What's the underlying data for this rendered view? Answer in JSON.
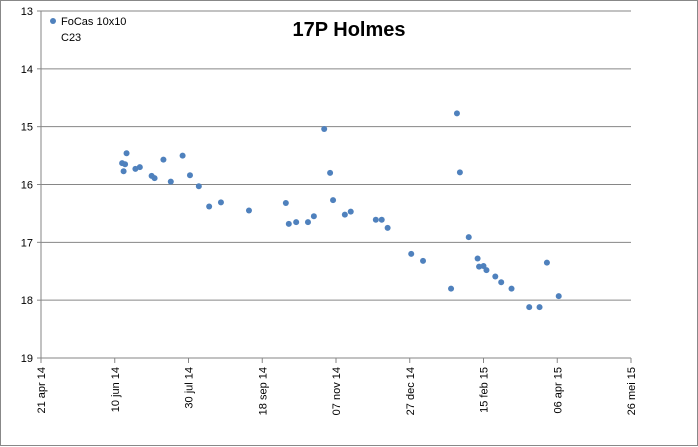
{
  "chart_data": {
    "type": "scatter",
    "title": "17P Holmes",
    "legend": {
      "placement": "top-left",
      "entries": [
        "FoCas 10x10",
        "C23"
      ]
    },
    "series": [
      {
        "name": "FoCas 10x10",
        "color": "#4f81bd",
        "points": [
          [
            "2014-06-15",
            15.63
          ],
          [
            "2014-06-16",
            15.77
          ],
          [
            "2014-06-17",
            15.65
          ],
          [
            "2014-06-18",
            15.46
          ],
          [
            "2014-06-24",
            15.73
          ],
          [
            "2014-06-27",
            15.7
          ],
          [
            "2014-07-05",
            15.85
          ],
          [
            "2014-07-07",
            15.89
          ],
          [
            "2014-07-13",
            15.57
          ],
          [
            "2014-07-18",
            15.95
          ],
          [
            "2014-07-26",
            15.5
          ],
          [
            "2014-07-31",
            15.84
          ],
          [
            "2014-08-06",
            16.03
          ],
          [
            "2014-08-13",
            16.38
          ],
          [
            "2014-08-21",
            16.31
          ],
          [
            "2014-09-09",
            16.45
          ],
          [
            "2014-10-04",
            16.32
          ],
          [
            "2014-10-06",
            16.68
          ],
          [
            "2014-10-11",
            16.65
          ],
          [
            "2014-10-19",
            16.65
          ],
          [
            "2014-10-23",
            16.55
          ],
          [
            "2014-10-30",
            15.04
          ],
          [
            "2014-11-03",
            15.8
          ],
          [
            "2014-11-05",
            16.27
          ],
          [
            "2014-11-13",
            16.52
          ],
          [
            "2014-11-17",
            16.47
          ],
          [
            "2014-12-04",
            16.61
          ],
          [
            "2014-12-08",
            16.61
          ],
          [
            "2014-12-12",
            16.75
          ],
          [
            "2014-12-28",
            17.2
          ],
          [
            "2015-01-05",
            17.32
          ],
          [
            "2015-01-24",
            17.8
          ],
          [
            "2015-01-28",
            14.77
          ],
          [
            "2015-01-30",
            15.79
          ],
          [
            "2015-02-05",
            16.91
          ],
          [
            "2015-02-11",
            17.28
          ],
          [
            "2015-02-12",
            17.42
          ],
          [
            "2015-02-15",
            17.41
          ],
          [
            "2015-02-17",
            17.48
          ],
          [
            "2015-02-23",
            17.59
          ],
          [
            "2015-02-27",
            17.69
          ],
          [
            "2015-03-06",
            17.8
          ],
          [
            "2015-03-18",
            18.12
          ],
          [
            "2015-03-25",
            18.12
          ],
          [
            "2015-03-30",
            17.35
          ],
          [
            "2015-04-07",
            17.93
          ]
        ]
      }
    ],
    "x_axis": {
      "scale": "date",
      "range": [
        "2014-04-21",
        "2015-05-26"
      ],
      "tick_labels": [
        "21 apr 14",
        "10 jun 14",
        "30 jul 14",
        "18 sep 14",
        "07 nov 14",
        "27 dec 14",
        "15 feb 15",
        "06 apr 15",
        "26 mei 15"
      ],
      "tick_dates": [
        "2014-04-21",
        "2014-06-10",
        "2014-07-30",
        "2014-09-18",
        "2014-11-07",
        "2014-12-27",
        "2015-02-15",
        "2015-04-06",
        "2015-05-26"
      ]
    },
    "y_axis": {
      "reversed": true,
      "range": [
        13,
        19
      ],
      "ticks": [
        13,
        14,
        15,
        16,
        17,
        18,
        19
      ],
      "grid": true
    },
    "xlabel": "",
    "ylabel": ""
  }
}
